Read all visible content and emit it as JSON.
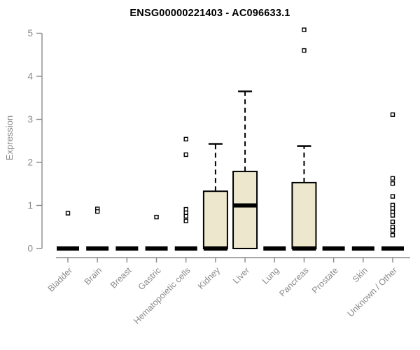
{
  "chart_data": {
    "type": "boxplot",
    "title": "ENSG00000221403 - AC096633.1",
    "ylabel": "Expression",
    "xlabel": "",
    "ylim": [
      0,
      5
    ],
    "yticks": [
      0,
      1,
      2,
      3,
      4,
      5
    ],
    "grid": false,
    "legend": "none",
    "categories": [
      "Bladder",
      "Brain",
      "Breast",
      "Gastric",
      "Hematopoietic cells",
      "Kidney",
      "Liver",
      "Lung",
      "Pancreas",
      "Prostate",
      "Skin",
      "Unknown / Other"
    ],
    "boxes": [
      {
        "category": "Bladder",
        "q1": 0,
        "median": 0,
        "q3": 0,
        "whisker_low": 0,
        "whisker_high": 0,
        "outliers": [
          0.82
        ]
      },
      {
        "category": "Brain",
        "q1": 0,
        "median": 0,
        "q3": 0,
        "whisker_low": 0,
        "whisker_high": 0,
        "outliers": [
          0.92,
          0.86
        ]
      },
      {
        "category": "Breast",
        "q1": 0,
        "median": 0,
        "q3": 0,
        "whisker_low": 0,
        "whisker_high": 0,
        "outliers": []
      },
      {
        "category": "Gastric",
        "q1": 0,
        "median": 0,
        "q3": 0,
        "whisker_low": 0,
        "whisker_high": 0,
        "outliers": [
          0.73
        ]
      },
      {
        "category": "Hematopoietic cells",
        "q1": 0,
        "median": 0,
        "q3": 0,
        "whisker_low": 0,
        "whisker_high": 0,
        "outliers": [
          2.54,
          2.18,
          0.91,
          0.83,
          0.75,
          0.64
        ]
      },
      {
        "category": "Kidney",
        "q1": 0,
        "median": 0,
        "q3": 1.33,
        "whisker_low": 0,
        "whisker_high": 2.43,
        "outliers": []
      },
      {
        "category": "Liver",
        "q1": 0,
        "median": 1.0,
        "q3": 1.79,
        "whisker_low": 0,
        "whisker_high": 3.65,
        "outliers": []
      },
      {
        "category": "Lung",
        "q1": 0,
        "median": 0,
        "q3": 0,
        "whisker_low": 0,
        "whisker_high": 0,
        "outliers": []
      },
      {
        "category": "Pancreas",
        "q1": 0,
        "median": 0,
        "q3": 1.53,
        "whisker_low": 0,
        "whisker_high": 2.38,
        "outliers": [
          5.08,
          4.6
        ]
      },
      {
        "category": "Prostate",
        "q1": 0,
        "median": 0,
        "q3": 0,
        "whisker_low": 0,
        "whisker_high": 0,
        "outliers": []
      },
      {
        "category": "Skin",
        "q1": 0,
        "median": 0,
        "q3": 0,
        "whisker_low": 0,
        "whisker_high": 0,
        "outliers": []
      },
      {
        "category": "Unknown / Other",
        "q1": 0,
        "median": 0,
        "q3": 0,
        "whisker_low": 0,
        "whisker_high": 0,
        "outliers": [
          3.11,
          1.63,
          1.51,
          1.21,
          1.01,
          0.93,
          0.85,
          0.77,
          0.62,
          0.5,
          0.42,
          0.31
        ]
      }
    ],
    "colors": {
      "box_fill": "#EDE8CD",
      "box_stroke": "#000000",
      "median": "#000000",
      "whisker": "#000000",
      "outlier_stroke": "#000000",
      "outlier_fill": "#FFFFFF",
      "axis": "#8A8A8A",
      "tick_label": "#8A8A8A",
      "title": "#000000",
      "background": "#FFFFFF"
    }
  }
}
